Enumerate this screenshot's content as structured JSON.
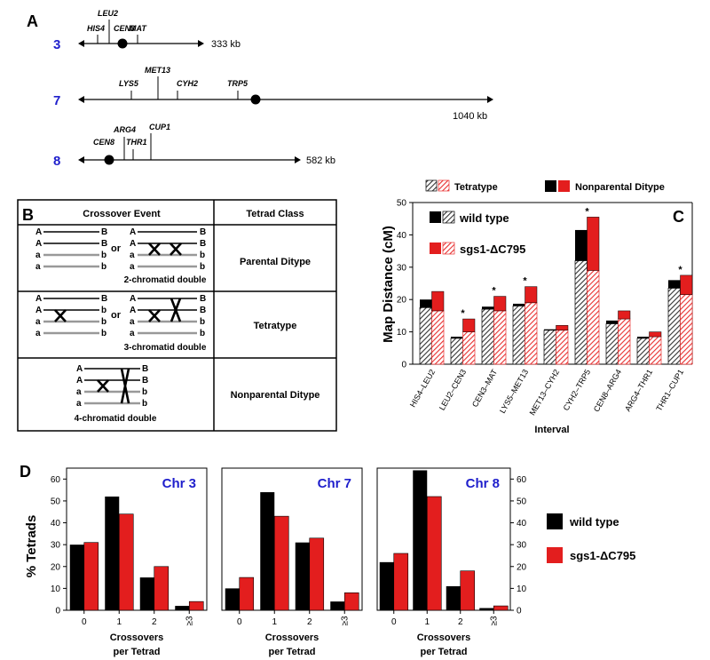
{
  "panel_a": {
    "label": "A",
    "chromosomes": [
      {
        "number": "3",
        "size": "333 kb",
        "genes": [
          "HIS4",
          "LEU2",
          "CEN3",
          "MAT"
        ]
      },
      {
        "number": "7",
        "size": "1040 kb",
        "genes": [
          "LYS5",
          "MET13",
          "CYH2",
          "TRP5"
        ]
      },
      {
        "number": "8",
        "size": "582 kb",
        "genes": [
          "CEN8",
          "ARG4",
          "THR1",
          "CUP1"
        ]
      }
    ]
  },
  "panel_b": {
    "label": "B",
    "header": {
      "event": "Crossover Event",
      "class": "Tetrad Class"
    },
    "rows": [
      {
        "caption": "2-chromatid double",
        "class": "Parental Ditype",
        "or": "or"
      },
      {
        "caption": "3-chromatid double",
        "class": "Tetratype",
        "or": "or"
      },
      {
        "caption": "4-chromatid double",
        "class": "Nonparental Ditype"
      }
    ],
    "alleles": {
      "A": "A",
      "B": "B",
      "a": "a",
      "b": "b",
      "X": "X"
    }
  },
  "panel_c": {
    "label": "C",
    "legend": {
      "tetratype": "Tetratype",
      "npd": "Nonparental Ditype",
      "wt": "wild type",
      "mut": "sgs1-ΔC795"
    },
    "star": "*",
    "chart_data": {
      "type": "bar",
      "ylabel": "Map Distance (cM)",
      "xlabel": "Interval",
      "ylim": [
        0,
        50
      ],
      "yticks": [
        "0",
        "10",
        "20",
        "30",
        "40",
        "50"
      ],
      "categories": [
        "HIS4–LEU2",
        "LEU2–CEN3",
        "CEN3–MAT",
        "LYS5–MET13",
        "MET13–CYH2",
        "CYH2–TRP5",
        "CEN8–ARG4",
        "ARG4–THR1",
        "THR1–CUP1"
      ],
      "series": [
        {
          "name": "wild type tetratype",
          "values": [
            17.5,
            8.0,
            17.0,
            18.0,
            10.5,
            32.0,
            12.5,
            8.0,
            23.5
          ]
        },
        {
          "name": "wild type nonparental ditype",
          "values": [
            2.5,
            0.5,
            0.8,
            0.7,
            0.3,
            9.5,
            1.0,
            0.5,
            2.5
          ]
        },
        {
          "name": "sgs1-ΔC795 tetratype",
          "values": [
            16.5,
            10.0,
            16.5,
            19.0,
            10.5,
            29.0,
            14.0,
            8.5,
            21.5
          ]
        },
        {
          "name": "sgs1-ΔC795 nonparental ditype",
          "values": [
            6.0,
            4.0,
            4.5,
            5.0,
            1.5,
            16.5,
            2.5,
            1.5,
            6.0
          ]
        }
      ],
      "significant": [
        false,
        true,
        true,
        true,
        false,
        true,
        false,
        false,
        true
      ]
    }
  },
  "panel_d": {
    "label": "D",
    "ylabel": "% Tetrads",
    "xlabel1": "Crossovers",
    "xlabel2": "per Tetrad",
    "legend": {
      "wt": "wild type",
      "mut": "sgs1-ΔC795"
    },
    "chart_data": [
      {
        "type": "bar",
        "title": "Chr 3",
        "categories": [
          "0",
          "1",
          "2",
          "≥3"
        ],
        "ylim": [
          0,
          65
        ],
        "yticks": [
          "0",
          "10",
          "20",
          "30",
          "40",
          "50",
          "60"
        ],
        "series": [
          {
            "name": "wild type",
            "values": [
              30,
              52,
              15,
              2
            ]
          },
          {
            "name": "sgs1-ΔC795",
            "values": [
              31,
              44,
              20,
              4
            ]
          }
        ]
      },
      {
        "type": "bar",
        "title": "Chr 7",
        "categories": [
          "0",
          "1",
          "2",
          "≥3"
        ],
        "ylim": [
          0,
          65
        ],
        "yticks": [
          "0",
          "10",
          "20",
          "30",
          "40",
          "50",
          "60"
        ],
        "series": [
          {
            "name": "wild type",
            "values": [
              10,
              54,
              31,
              4
            ]
          },
          {
            "name": "sgs1-ΔC795",
            "values": [
              15,
              43,
              33,
              8
            ]
          }
        ]
      },
      {
        "type": "bar",
        "title": "Chr 8",
        "categories": [
          "0",
          "1",
          "2",
          "≥3"
        ],
        "ylim": [
          0,
          65
        ],
        "yticks": [
          "0",
          "10",
          "20",
          "30",
          "40",
          "50",
          "60"
        ],
        "series": [
          {
            "name": "wild type",
            "values": [
              22,
              64,
              11,
              1
            ]
          },
          {
            "name": "sgs1-ΔC795",
            "values": [
              26,
              52,
              18,
              2
            ]
          }
        ]
      }
    ]
  }
}
